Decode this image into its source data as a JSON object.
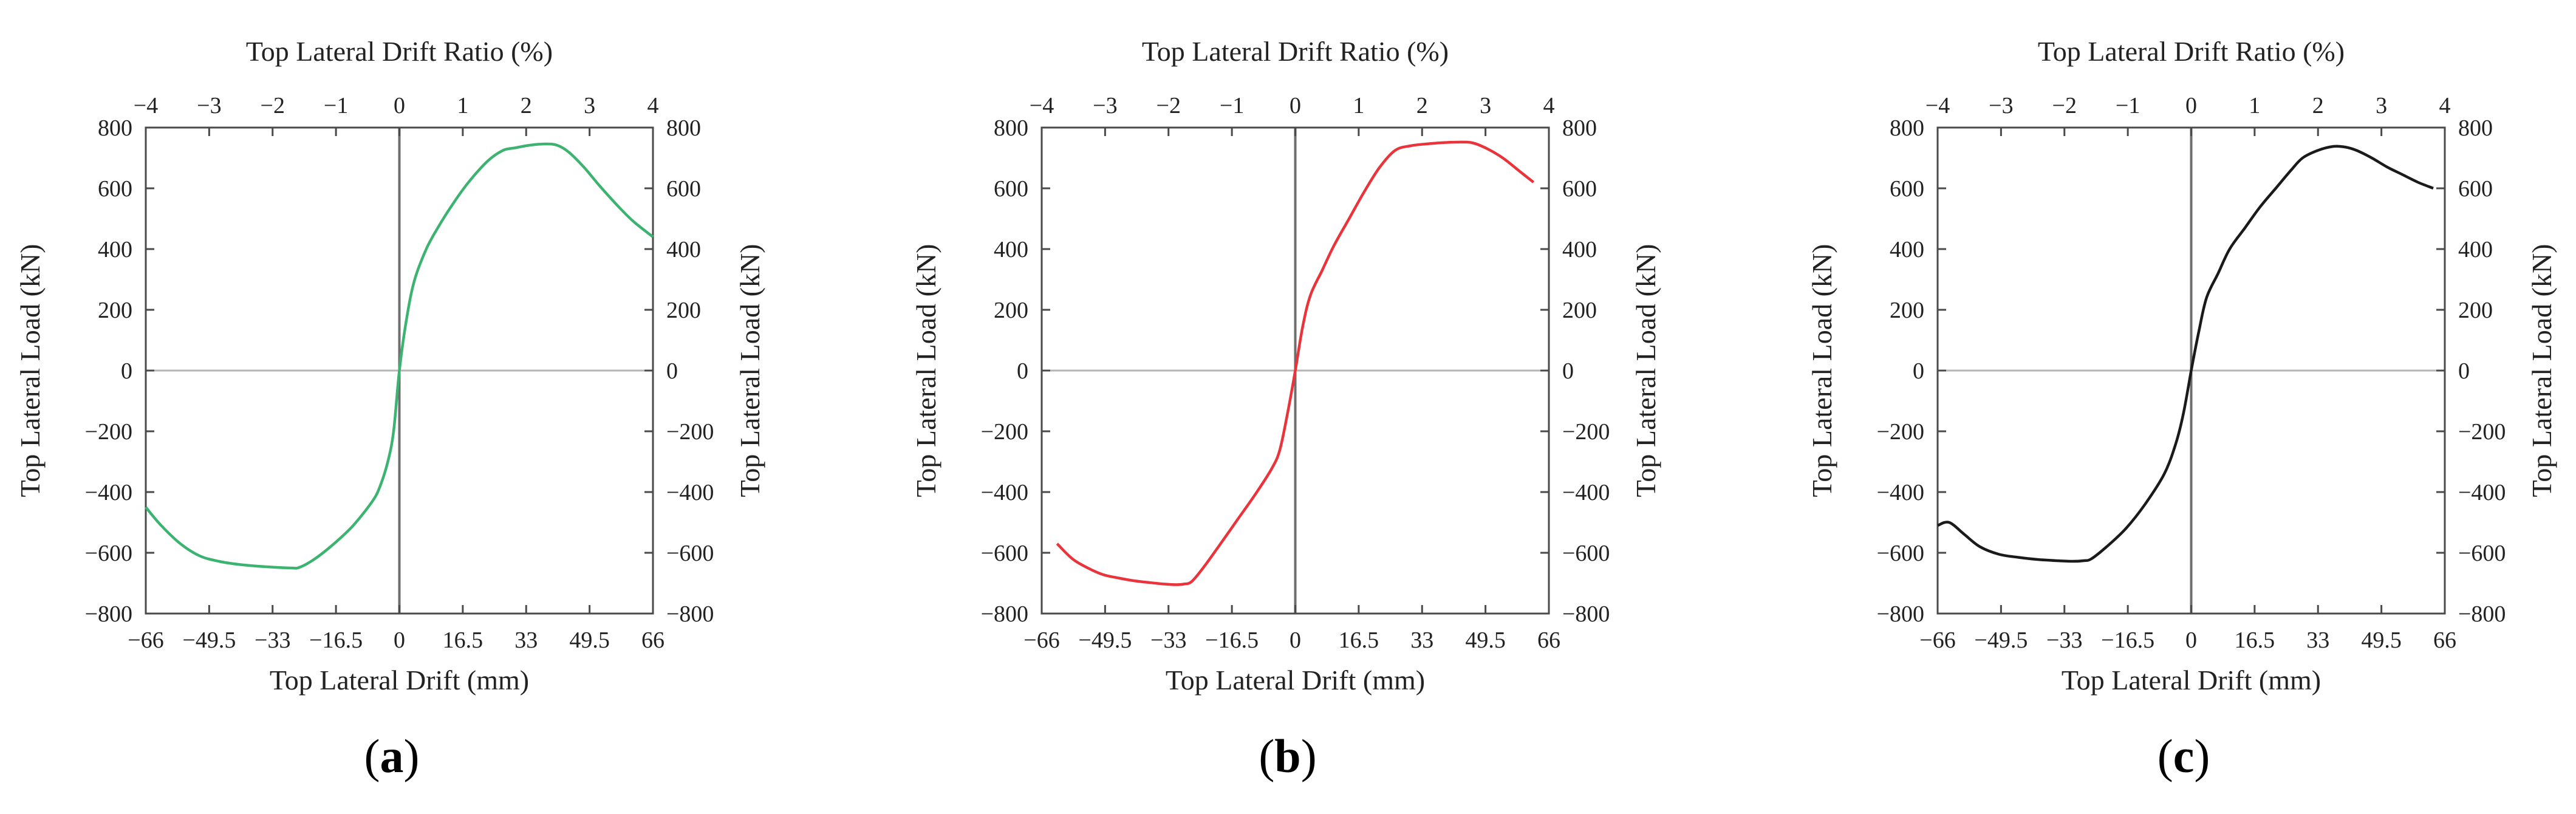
{
  "chart_data": [
    {
      "type": "line",
      "panel": "a",
      "color": "#3cb371",
      "title_top": "Top Lateral Drift Ratio (%)",
      "xlabel": "Top Lateral Drift (mm)",
      "ylabel_left": "Top Lateral  Load (kN)",
      "ylabel_right": "Top Lateral  Load (kN)",
      "xlim": [
        -66,
        66
      ],
      "ylim": [
        -800,
        800
      ],
      "xticks": [
        "−66",
        "−49.5",
        "−33",
        "−16.5",
        "0",
        "16.5",
        "33",
        "49.5",
        "66"
      ],
      "xtick_values": [
        -66,
        -49.5,
        -33,
        -16.5,
        0,
        16.5,
        33,
        49.5,
        66
      ],
      "top_ticks": [
        "−4",
        "−3",
        "−2",
        "−1",
        "0",
        "1",
        "2",
        "3",
        "4"
      ],
      "top_tick_values": [
        -4,
        -3,
        -2,
        -1,
        0,
        1,
        2,
        3,
        4
      ],
      "yticks": [
        "−800",
        "−600",
        "−400",
        "−200",
        "0",
        "200",
        "400",
        "600",
        "800"
      ],
      "ytick_values": [
        -800,
        -600,
        -400,
        -200,
        0,
        200,
        400,
        600,
        800
      ],
      "x": [
        -66,
        -62,
        -57,
        -52,
        -47,
        -42,
        -37,
        -32,
        -28,
        -26,
        -22,
        -17,
        -12,
        -7,
        -5,
        -3,
        -1.5,
        0,
        2,
        4,
        7,
        10,
        14,
        18,
        23,
        27,
        30,
        34,
        38,
        41,
        44,
        48,
        52,
        57,
        61,
        66
      ],
      "y": [
        -450,
        -510,
        -570,
        -610,
        -628,
        -638,
        -644,
        -648,
        -650,
        -648,
        -620,
        -570,
        -510,
        -430,
        -380,
        -300,
        -200,
        0,
        180,
        300,
        400,
        470,
        550,
        620,
        690,
        725,
        733,
        742,
        746,
        742,
        720,
        670,
        610,
        540,
        490,
        440
      ]
    },
    {
      "type": "line",
      "panel": "b",
      "color": "#e8343a",
      "title_top": "Top Lateral Drift Ratio (%)",
      "xlabel": "Top Lateral Drift (mm)",
      "ylabel_left": "Top Lateral  Load (kN)",
      "ylabel_right": "Top Lateral  Load (kN)",
      "xlim": [
        -66,
        66
      ],
      "ylim": [
        -800,
        800
      ],
      "xticks": [
        "−66",
        "−49.5",
        "−33",
        "−16.5",
        "0",
        "16.5",
        "33",
        "49.5",
        "66"
      ],
      "xtick_values": [
        -66,
        -49.5,
        -33,
        -16.5,
        0,
        16.5,
        33,
        49.5,
        66
      ],
      "top_ticks": [
        "−4",
        "−3",
        "−2",
        "−1",
        "0",
        "1",
        "2",
        "3",
        "4"
      ],
      "top_tick_values": [
        -4,
        -3,
        -2,
        -1,
        0,
        1,
        2,
        3,
        4
      ],
      "yticks": [
        "−800",
        "−600",
        "−400",
        "−200",
        "0",
        "200",
        "400",
        "600",
        "800"
      ],
      "ytick_values": [
        -800,
        -600,
        -400,
        -200,
        0,
        200,
        400,
        600,
        800
      ],
      "x": [
        -62,
        -58,
        -54,
        -50,
        -46,
        -42,
        -38,
        -34,
        -31,
        -29,
        -27,
        -24,
        -20,
        -15,
        -10,
        -6,
        -4,
        -2,
        0,
        2,
        4,
        7,
        10,
        14,
        18,
        22,
        26,
        30,
        34,
        38,
        42,
        46,
        50,
        54,
        58,
        62
      ],
      "y": [
        -570,
        -620,
        -650,
        -672,
        -683,
        -692,
        -698,
        -703,
        -705,
        -703,
        -695,
        -650,
        -580,
        -490,
        -400,
        -320,
        -260,
        -140,
        0,
        150,
        250,
        330,
        410,
        500,
        590,
        670,
        725,
        740,
        746,
        750,
        752,
        750,
        730,
        700,
        660,
        620
      ]
    },
    {
      "type": "line",
      "panel": "c",
      "color": "#1a1a1a",
      "title_top": "Top Lateral Drift Ratio (%)",
      "xlabel": "Top Lateral Drift (mm)",
      "ylabel_left": "Top Lateral  Load (kN)",
      "ylabel_right": "Top Lateral  Load (kN)",
      "xlim": [
        -66,
        66
      ],
      "ylim": [
        -800,
        800
      ],
      "xticks": [
        "−66",
        "−49.5",
        "−33",
        "−16.5",
        "0",
        "16.5",
        "33",
        "49.5",
        "66"
      ],
      "xtick_values": [
        -66,
        -49.5,
        -33,
        -16.5,
        0,
        16.5,
        33,
        49.5,
        66
      ],
      "top_ticks": [
        "−4",
        "−3",
        "−2",
        "−1",
        "0",
        "1",
        "2",
        "3",
        "4"
      ],
      "top_tick_values": [
        -4,
        -3,
        -2,
        -1,
        0,
        1,
        2,
        3,
        4
      ],
      "yticks": [
        "−800",
        "−600",
        "−400",
        "−200",
        "0",
        "200",
        "400",
        "600",
        "800"
      ],
      "ytick_values": [
        -800,
        -600,
        -400,
        -200,
        0,
        200,
        400,
        600,
        800
      ],
      "x": [
        -66,
        -63,
        -59,
        -55,
        -50,
        -45,
        -40,
        -35,
        -31,
        -28,
        -26,
        -22,
        -17,
        -12,
        -7,
        -4,
        -2,
        0,
        2,
        4,
        7,
        10,
        14,
        18,
        22,
        26,
        29,
        33,
        37,
        40,
        43,
        47,
        51,
        55,
        59,
        63
      ],
      "y": [
        -510,
        -500,
        -540,
        -580,
        -605,
        -615,
        -622,
        -626,
        -628,
        -626,
        -620,
        -580,
        -520,
        -440,
        -340,
        -240,
        -140,
        0,
        130,
        240,
        320,
        400,
        470,
        540,
        600,
        660,
        700,
        725,
        738,
        736,
        725,
        700,
        670,
        645,
        620,
        600
      ]
    }
  ],
  "panel_labels": [
    "a",
    "b",
    "c"
  ]
}
